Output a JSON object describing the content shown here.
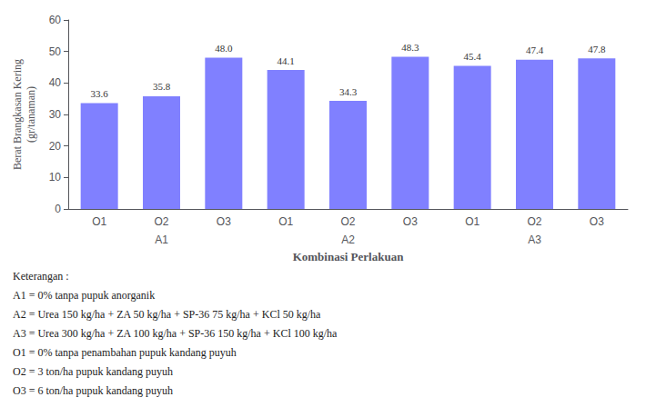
{
  "chart_data": {
    "type": "bar",
    "categories": [
      "O1",
      "O2",
      "O3",
      "O1",
      "O2",
      "O3",
      "O1",
      "O2",
      "O3"
    ],
    "group_labels": [
      null,
      "A1",
      null,
      null,
      "A2",
      null,
      null,
      "A3",
      null
    ],
    "values": [
      33.6,
      35.8,
      48.0,
      44.1,
      34.3,
      48.3,
      45.4,
      47.4,
      47.8
    ],
    "value_labels": [
      "33.6",
      "35.8",
      "48.0",
      "44.1",
      "34.3",
      "48.3",
      "45.4",
      "47.4",
      "47.8"
    ],
    "data_labels": true,
    "color": "#8080FF",
    "ylabel": "Berat Brangkasan Kering\n(gr/tanaman)",
    "xlabel": "Kombinasi Perlakuan",
    "ylim": [
      0,
      60
    ],
    "yticks": [
      0,
      10,
      20,
      30,
      40,
      50,
      60
    ],
    "grid": false,
    "annotations": [
      "Keterangan :",
      "A1 = 0% tanpa pupuk anorganik",
      "A2 = Urea 150 kg/ha + ZA 50 kg/ha + SP-36 75 kg/ha + KCl 50 kg/ha",
      "A3 = Urea 300 kg/ha + ZA 100 kg/ha + SP-36 150 kg/ha + KCl 100 kg/ha",
      "O1 = 0% tanpa penambahan pupuk kandang puyuh",
      "O2 = 3 ton/ha pupuk kandang puyuh",
      "O3 = 6 ton/ha pupuk kandang puyuh"
    ]
  }
}
